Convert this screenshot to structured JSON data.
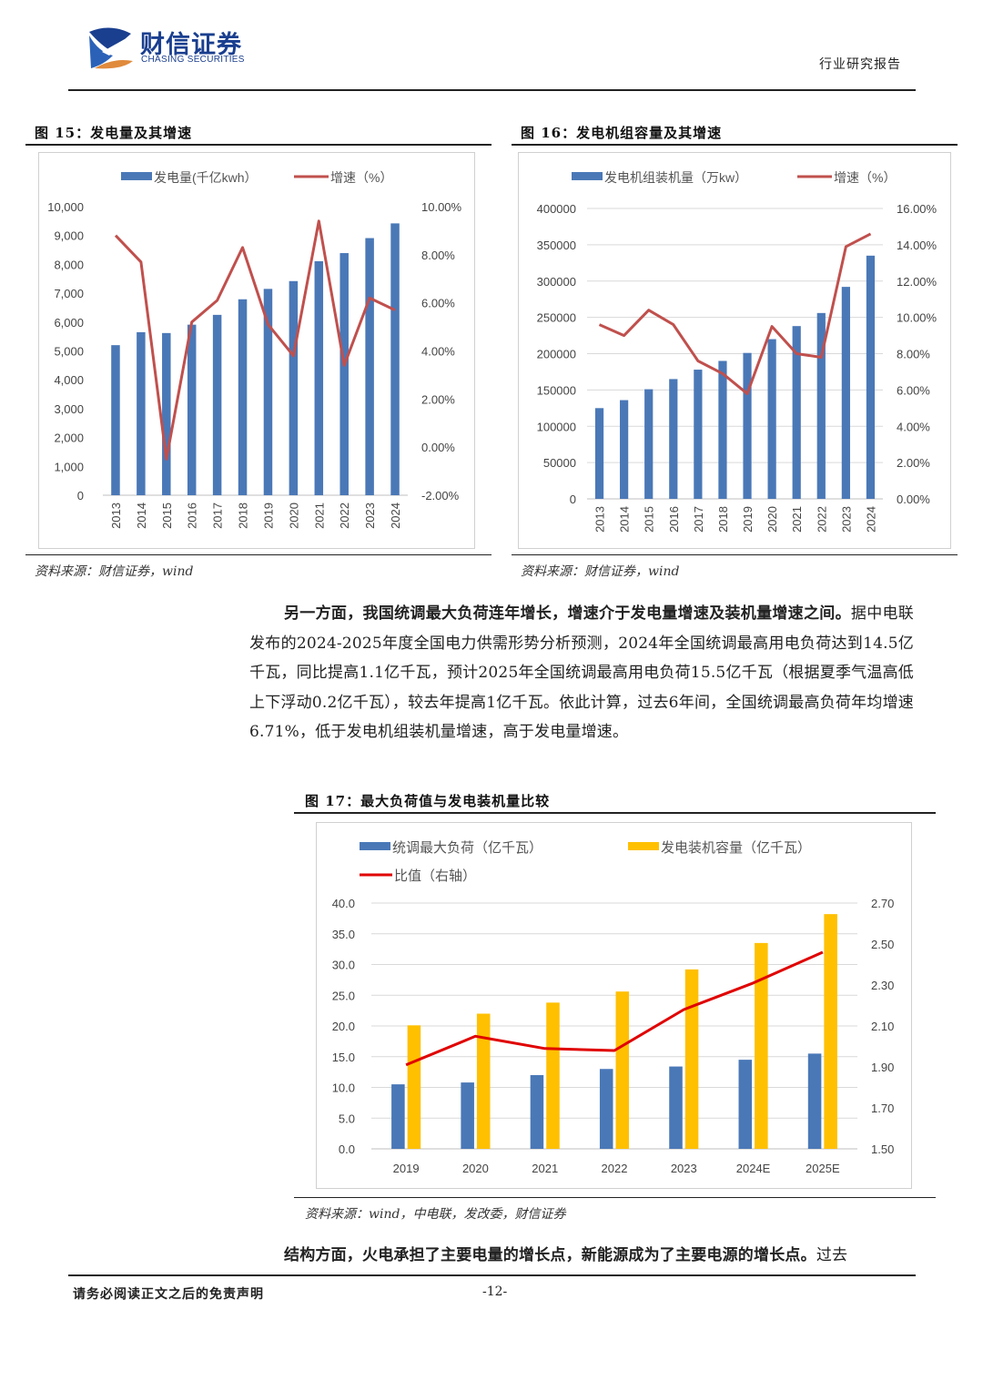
{
  "header": {
    "logo_cn": "财信证券",
    "logo_en": "CHASING SECURITIES",
    "report_type": "行业研究报告"
  },
  "figure15": {
    "title": "图 15：发电量及其增速",
    "source": "资料来源：财信证券，wind"
  },
  "figure16": {
    "title": "图 16：发电机组容量及其增速",
    "source": "资料来源：财信证券，wind"
  },
  "figure17": {
    "title": "图 17：最大负荷值与发电装机量比较",
    "source": "资料来源：wind，中电联，发改委，财信证券"
  },
  "paragraph1": {
    "lead": "另一方面，我国统调最大负荷连年增长，增速介于发电量增速及装机量增速之间。",
    "body": "据中电联发布的2024-2025年度全国电力供需形势分析预测，2024年全国统调最高用电负荷达到14.5亿千瓦，同比提高1.1亿千瓦，预计2025年全国统调最高用电负荷15.5亿千瓦（根据夏季气温高低上下浮动0.2亿千瓦），较去年提高1亿千瓦。依此计算，过去6年间，全国统调最高负荷年均增速6.71%，低于发电机组装机量增速，高于发电量增速。"
  },
  "paragraph2": {
    "lead": "结构方面，火电承担了主要电量的增长点，新能源成为了主要电源的增长点。",
    "body": "过去"
  },
  "footer": {
    "disclaimer": "请务必阅读正文之后的免责声明",
    "page": "-12-"
  },
  "chart_data": [
    {
      "id": "fig15",
      "type": "bar",
      "categories": [
        "2013",
        "2014",
        "2015",
        "2016",
        "2017",
        "2018",
        "2019",
        "2020",
        "2021",
        "2022",
        "2023",
        "2024"
      ],
      "series": [
        {
          "name": "发电量(千亿kwh）",
          "kind": "bar",
          "axis": "left",
          "color": "#4a78b7",
          "values": [
            5200,
            5650,
            5620,
            5910,
            6250,
            6790,
            7150,
            7420,
            8110,
            8390,
            8910,
            9420
          ]
        },
        {
          "name": "增速（%）",
          "kind": "line",
          "axis": "right",
          "color": "#c0504d",
          "values": [
            8.8,
            7.7,
            -0.5,
            5.2,
            6.1,
            8.3,
            5.1,
            3.8,
            9.4,
            3.4,
            6.2,
            5.7
          ]
        }
      ],
      "left_axis": {
        "min": 0,
        "max": 10000,
        "ticks": [
          "0",
          "1,000",
          "2,000",
          "3,000",
          "4,000",
          "5,000",
          "6,000",
          "7,000",
          "8,000",
          "9,000",
          "10,000"
        ]
      },
      "right_axis": {
        "min": -2,
        "max": 10,
        "ticks": [
          "-2.00%",
          "0.00%",
          "2.00%",
          "4.00%",
          "6.00%",
          "8.00%",
          "10.00%"
        ]
      },
      "legend_position": "top"
    },
    {
      "id": "fig16",
      "type": "bar",
      "categories": [
        "2013",
        "2014",
        "2015",
        "2016",
        "2017",
        "2018",
        "2019",
        "2020",
        "2021",
        "2022",
        "2023",
        "2024"
      ],
      "series": [
        {
          "name": "发电机组装机量（万kw）",
          "kind": "bar",
          "axis": "left",
          "color": "#4a78b7",
          "values": [
            125000,
            136000,
            151000,
            165000,
            178000,
            190000,
            201000,
            220000,
            238000,
            256000,
            292000,
            335000
          ]
        },
        {
          "name": "增速（%）",
          "kind": "line",
          "axis": "right",
          "color": "#c0504d",
          "values": [
            9.6,
            9.0,
            10.4,
            9.6,
            7.6,
            6.9,
            5.8,
            9.5,
            8.0,
            7.8,
            13.9,
            14.6
          ]
        }
      ],
      "left_axis": {
        "min": 0,
        "max": 400000,
        "ticks": [
          "0",
          "50000",
          "100000",
          "150000",
          "200000",
          "250000",
          "300000",
          "350000",
          "400000"
        ]
      },
      "right_axis": {
        "min": 0,
        "max": 16,
        "ticks": [
          "0.00%",
          "2.00%",
          "4.00%",
          "6.00%",
          "8.00%",
          "10.00%",
          "12.00%",
          "14.00%",
          "16.00%"
        ]
      },
      "legend_position": "top"
    },
    {
      "id": "fig17",
      "type": "bar",
      "categories": [
        "2019",
        "2020",
        "2021",
        "2022",
        "2023",
        "2024E",
        "2025E"
      ],
      "series": [
        {
          "name": "统调最大负荷（亿千瓦）",
          "kind": "bar",
          "axis": "left",
          "color": "#4a78b7",
          "values": [
            10.5,
            10.8,
            12.0,
            13.0,
            13.4,
            14.5,
            15.5
          ]
        },
        {
          "name": "发电装机容量（亿千瓦）",
          "kind": "bar",
          "axis": "left",
          "color": "#ffc000",
          "values": [
            20.1,
            22.0,
            23.8,
            25.6,
            29.2,
            33.5,
            38.2
          ]
        },
        {
          "name": "比值（右轴）",
          "kind": "line",
          "axis": "right",
          "color": "#e00000",
          "values": [
            1.91,
            2.05,
            1.99,
            1.98,
            2.18,
            2.31,
            2.46
          ]
        }
      ],
      "left_axis": {
        "min": 0,
        "max": 40,
        "ticks": [
          "0.0",
          "5.0",
          "10.0",
          "15.0",
          "20.0",
          "25.0",
          "30.0",
          "35.0",
          "40.0"
        ]
      },
      "right_axis": {
        "min": 1.5,
        "max": 2.7,
        "ticks": [
          "1.50",
          "1.70",
          "1.90",
          "2.10",
          "2.30",
          "2.50",
          "2.70"
        ]
      },
      "legend_position": "top"
    }
  ]
}
